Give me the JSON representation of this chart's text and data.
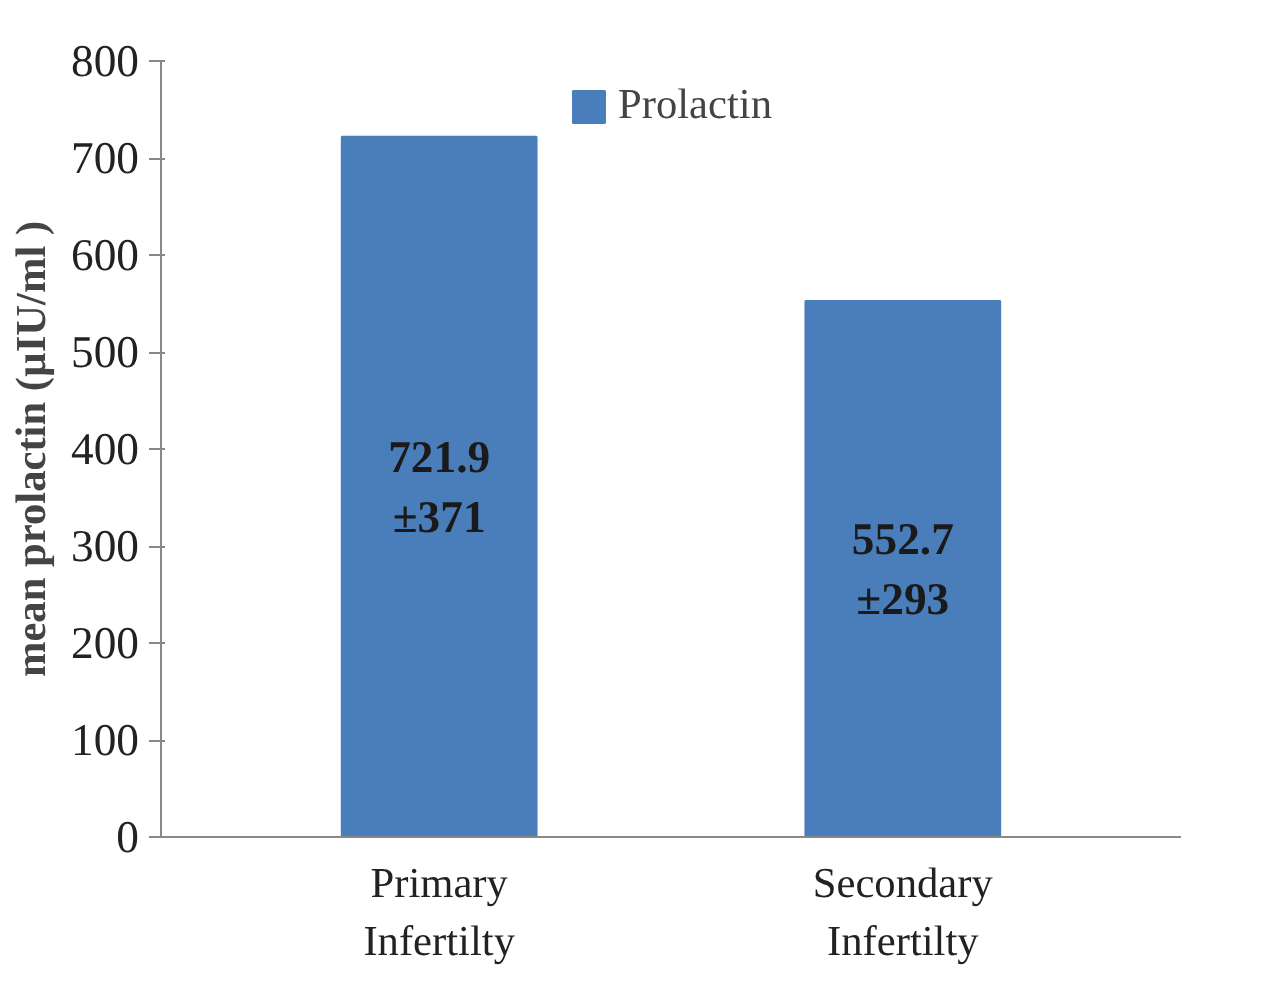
{
  "chart_data": {
    "type": "bar",
    "ylabel": "mean prolactin (µIU/ml )",
    "categories": [
      "Primary Infertilty",
      "Secondary Infertilty"
    ],
    "series": [
      {
        "name": "Prolactin",
        "color": "#4a7ebb",
        "values": [
          721.9,
          552.7
        ]
      }
    ],
    "value_labels": [
      "721.9\n±371",
      "552.7\n±293"
    ],
    "ylim": [
      0,
      800
    ],
    "yticks": [
      0,
      100,
      200,
      300,
      400,
      500,
      600,
      700,
      800
    ],
    "legend": "top",
    "grid": false
  }
}
